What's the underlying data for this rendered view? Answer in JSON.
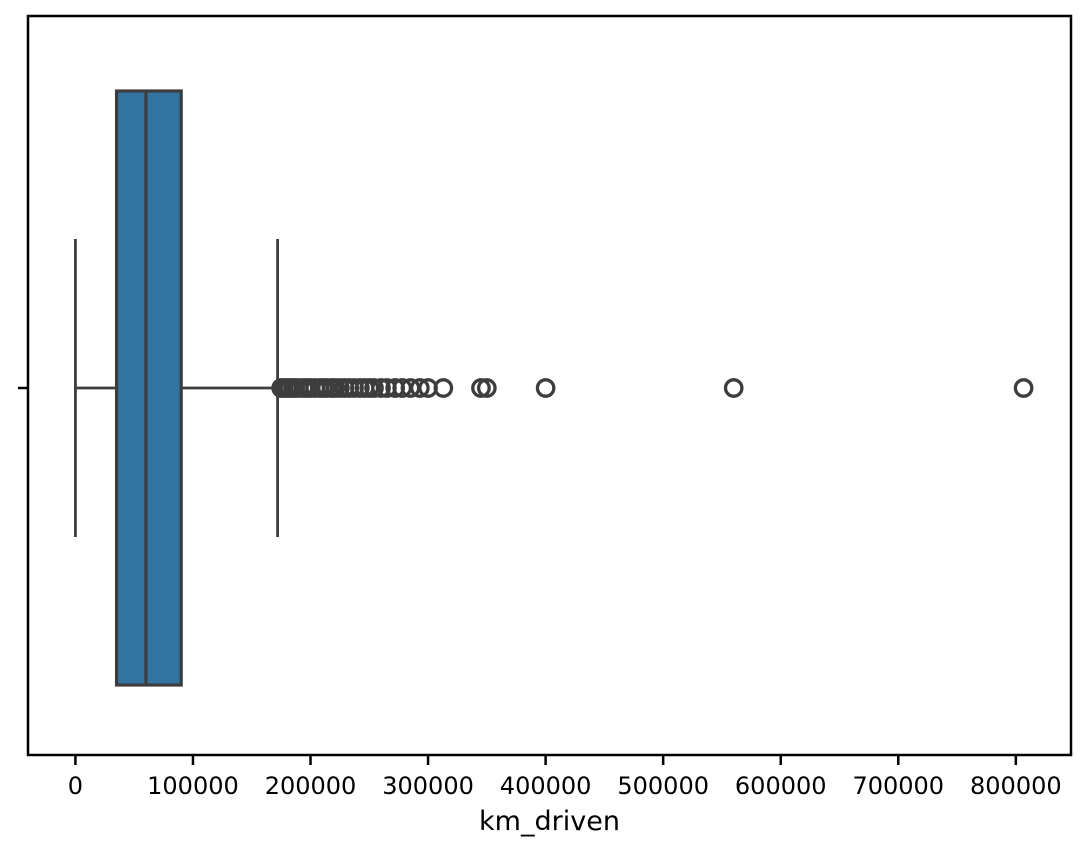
{
  "figure": {
    "background": "#ffffff"
  },
  "chart_data": {
    "type": "boxplot",
    "orientation": "horizontal",
    "title": "",
    "xlabel": "km_driven",
    "ylabel": "",
    "series_name": "km_driven",
    "stats": {
      "whisker_low": 1,
      "q1": 35000,
      "median": 60000,
      "q3": 90000,
      "whisker_high": 172000
    },
    "outliers": [
      175000,
      177000,
      180000,
      182000,
      185000,
      187000,
      190000,
      194000,
      197000,
      200000,
      204000,
      208000,
      211000,
      214000,
      218000,
      221000,
      225000,
      229000,
      233000,
      237000,
      242000,
      246000,
      250000,
      254000,
      260000,
      265000,
      272000,
      278000,
      285000,
      293000,
      300000,
      313000,
      345000,
      350000,
      400000,
      560000,
      806599
    ],
    "xlim": [
      -40329,
      846929
    ],
    "x_ticks": [
      {
        "value": 0,
        "label": "0"
      },
      {
        "value": 100000,
        "label": "100000"
      },
      {
        "value": 200000,
        "label": "200000"
      },
      {
        "value": 300000,
        "label": "300000"
      },
      {
        "value": 400000,
        "label": "400000"
      },
      {
        "value": 500000,
        "label": "500000"
      },
      {
        "value": 600000,
        "label": "600000"
      },
      {
        "value": 700000,
        "label": "700000"
      },
      {
        "value": 800000,
        "label": "800000"
      }
    ],
    "y_ticks": [
      {
        "label": ""
      }
    ],
    "grid": false,
    "legend": null,
    "colors": {
      "box_fill": "#3274a1",
      "box_line": "#3d3d3d",
      "axis_line": "#000000",
      "text": "#000000"
    }
  }
}
